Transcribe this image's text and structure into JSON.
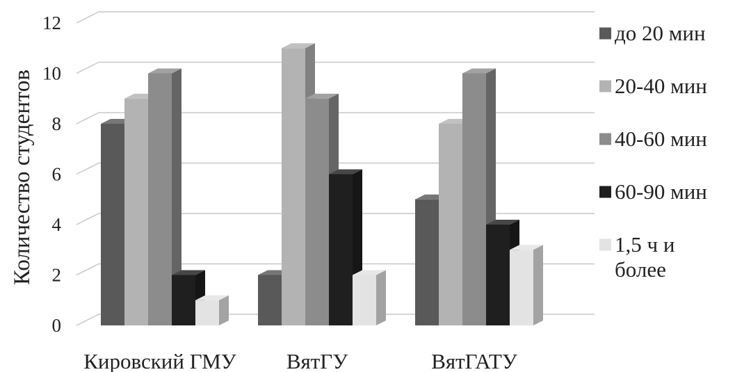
{
  "chart_data": {
    "type": "bar",
    "title": "",
    "xlabel": "",
    "ylabel": "Количество студентов",
    "ylim": [
      0,
      12
    ],
    "yticks": [
      0,
      2,
      4,
      6,
      8,
      10,
      12
    ],
    "grid": true,
    "legend_position": "right",
    "categories": [
      "Кировский ГМУ",
      "ВятГУ",
      "ВятГАТУ"
    ],
    "series": [
      {
        "name": "до 20 мин",
        "color": "#595959",
        "values": [
          8,
          2,
          5
        ]
      },
      {
        "name": "20-40 мин",
        "color": "#b3b3b3",
        "values": [
          9,
          11,
          8
        ]
      },
      {
        "name": "40-60 мин",
        "color": "#8c8c8c",
        "values": [
          10,
          9,
          10
        ]
      },
      {
        "name": "60-90 мин",
        "color": "#1f1f1f",
        "values": [
          2,
          6,
          4
        ]
      },
      {
        "name": "1,5 ч и более",
        "color": "#e3e3e3",
        "values": [
          1,
          2,
          3
        ]
      }
    ]
  }
}
